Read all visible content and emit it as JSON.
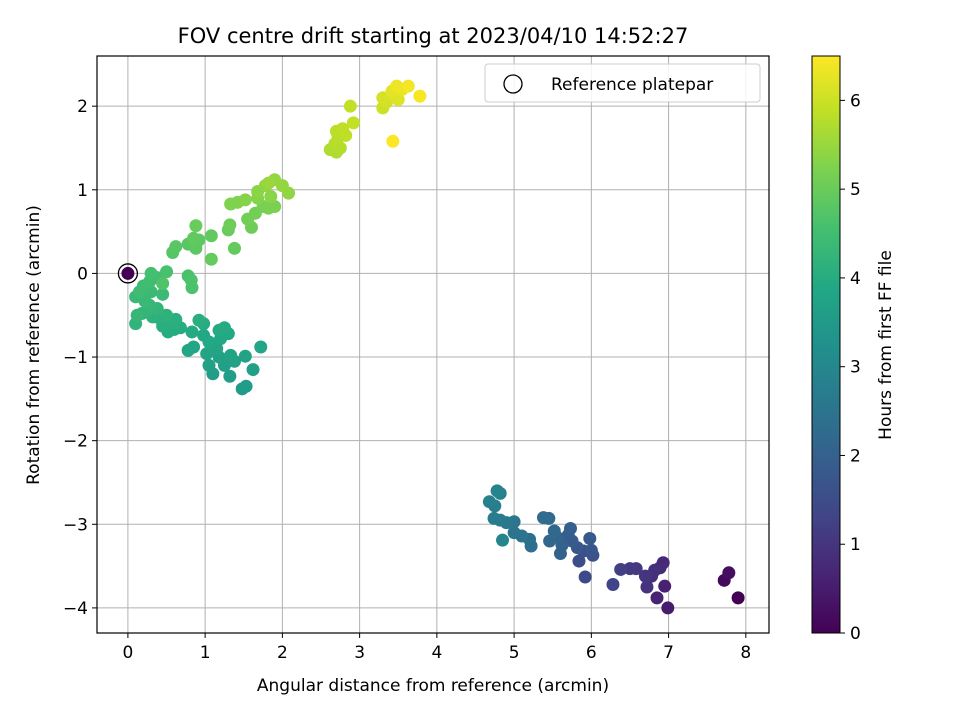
{
  "chart_data": {
    "type": "scatter",
    "title": "FOV centre drift starting at 2023/04/10 14:52:27",
    "xlabel": "Angular distance from reference (arcmin)",
    "ylabel": "Rotation from reference (arcmin)",
    "xlim": [
      -0.4,
      8.3
    ],
    "ylim": [
      -4.3,
      2.6
    ],
    "x_ticks": [
      0,
      1,
      2,
      3,
      4,
      5,
      6,
      7,
      8
    ],
    "y_ticks": [
      -4,
      -3,
      -2,
      -1,
      0,
      1,
      2
    ],
    "grid": true,
    "legend": {
      "position": "top-right",
      "entries": [
        "Reference platepar"
      ]
    },
    "colorbar": {
      "label": "Hours from first FF file",
      "range": [
        0,
        6.5
      ],
      "ticks": [
        0,
        1,
        2,
        3,
        4,
        5,
        6
      ],
      "colormap": "viridis"
    },
    "reference_point": {
      "x": 0,
      "y": 0,
      "name": "Reference platepar"
    },
    "series": [
      {
        "points": [
          {
            "x": 7.9,
            "y": -3.88,
            "t": 0.0
          },
          {
            "x": 7.72,
            "y": -3.67,
            "t": 0.15
          },
          {
            "x": 7.78,
            "y": -3.58,
            "t": 0.25
          },
          {
            "x": 6.99,
            "y": -4.0,
            "t": 0.5
          },
          {
            "x": 6.95,
            "y": -3.74,
            "t": 0.6
          },
          {
            "x": 6.85,
            "y": -3.88,
            "t": 0.65
          },
          {
            "x": 6.93,
            "y": -3.46,
            "t": 0.75
          },
          {
            "x": 6.89,
            "y": -3.52,
            "t": 0.8
          },
          {
            "x": 6.78,
            "y": -3.62,
            "t": 0.85
          },
          {
            "x": 6.82,
            "y": -3.55,
            "t": 0.9
          },
          {
            "x": 6.72,
            "y": -3.75,
            "t": 0.95
          },
          {
            "x": 6.7,
            "y": -3.62,
            "t": 1.0
          },
          {
            "x": 6.58,
            "y": -3.53,
            "t": 1.05
          },
          {
            "x": 6.5,
            "y": -3.53,
            "t": 1.1
          },
          {
            "x": 6.38,
            "y": -3.54,
            "t": 1.2
          },
          {
            "x": 6.28,
            "y": -3.72,
            "t": 1.3
          },
          {
            "x": 5.92,
            "y": -3.63,
            "t": 1.45
          },
          {
            "x": 5.84,
            "y": -3.44,
            "t": 1.55
          },
          {
            "x": 5.9,
            "y": -3.32,
            "t": 1.6
          },
          {
            "x": 6.02,
            "y": -3.37,
            "t": 1.65
          },
          {
            "x": 6.0,
            "y": -3.31,
            "t": 1.7
          },
          {
            "x": 5.82,
            "y": -3.28,
            "t": 1.75
          },
          {
            "x": 5.98,
            "y": -3.17,
            "t": 1.8
          },
          {
            "x": 5.75,
            "y": -3.2,
            "t": 1.85
          },
          {
            "x": 5.7,
            "y": -3.13,
            "t": 1.9
          },
          {
            "x": 5.73,
            "y": -3.05,
            "t": 1.95
          },
          {
            "x": 5.62,
            "y": -3.25,
            "t": 2.0
          },
          {
            "x": 5.6,
            "y": -3.35,
            "t": 2.05
          },
          {
            "x": 5.55,
            "y": -3.15,
            "t": 2.1
          },
          {
            "x": 5.46,
            "y": -3.2,
            "t": 2.15
          },
          {
            "x": 5.52,
            "y": -3.08,
            "t": 2.2
          },
          {
            "x": 5.45,
            "y": -2.93,
            "t": 2.25
          },
          {
            "x": 5.38,
            "y": -2.92,
            "t": 2.3
          },
          {
            "x": 5.22,
            "y": -3.26,
            "t": 2.35
          },
          {
            "x": 5.2,
            "y": -3.18,
            "t": 2.4
          },
          {
            "x": 5.1,
            "y": -3.14,
            "t": 2.45
          },
          {
            "x": 5.0,
            "y": -3.1,
            "t": 2.5
          },
          {
            "x": 5.0,
            "y": -2.97,
            "t": 2.55
          },
          {
            "x": 4.9,
            "y": -2.98,
            "t": 2.6
          },
          {
            "x": 4.82,
            "y": -2.95,
            "t": 2.65
          },
          {
            "x": 4.74,
            "y": -2.93,
            "t": 2.7
          },
          {
            "x": 4.75,
            "y": -2.78,
            "t": 2.75
          },
          {
            "x": 4.68,
            "y": -2.73,
            "t": 2.8
          },
          {
            "x": 4.82,
            "y": -2.63,
            "t": 2.85
          },
          {
            "x": 4.78,
            "y": -2.6,
            "t": 2.9
          },
          {
            "x": 4.85,
            "y": -3.19,
            "t": 2.95
          },
          {
            "x": 1.48,
            "y": -1.38,
            "t": 3.5
          },
          {
            "x": 1.53,
            "y": -1.35,
            "t": 3.55
          },
          {
            "x": 1.32,
            "y": -1.23,
            "t": 3.6
          },
          {
            "x": 1.1,
            "y": -1.2,
            "t": 3.6
          },
          {
            "x": 1.62,
            "y": -1.15,
            "t": 3.65
          },
          {
            "x": 1.25,
            "y": -1.1,
            "t": 3.65
          },
          {
            "x": 1.05,
            "y": -1.1,
            "t": 3.7
          },
          {
            "x": 1.38,
            "y": -1.05,
            "t": 3.7
          },
          {
            "x": 1.18,
            "y": -1.0,
            "t": 3.7
          },
          {
            "x": 1.33,
            "y": -0.98,
            "t": 3.75
          },
          {
            "x": 1.52,
            "y": -0.99,
            "t": 3.75
          },
          {
            "x": 1.02,
            "y": -0.96,
            "t": 3.8
          },
          {
            "x": 1.15,
            "y": -0.9,
            "t": 3.8
          },
          {
            "x": 1.1,
            "y": -0.86,
            "t": 3.8
          },
          {
            "x": 1.72,
            "y": -0.88,
            "t": 3.85
          },
          {
            "x": 0.78,
            "y": -0.92,
            "t": 3.85
          },
          {
            "x": 0.85,
            "y": -0.88,
            "t": 3.85
          },
          {
            "x": 1.05,
            "y": -0.82,
            "t": 3.9
          },
          {
            "x": 1.2,
            "y": -0.78,
            "t": 3.9
          },
          {
            "x": 0.98,
            "y": -0.74,
            "t": 3.9
          },
          {
            "x": 1.3,
            "y": -0.72,
            "t": 3.9
          },
          {
            "x": 0.83,
            "y": -0.7,
            "t": 3.95
          },
          {
            "x": 1.18,
            "y": -0.68,
            "t": 3.95
          },
          {
            "x": 1.25,
            "y": -0.65,
            "t": 3.95
          },
          {
            "x": 0.6,
            "y": -0.67,
            "t": 3.95
          },
          {
            "x": 0.68,
            "y": -0.65,
            "t": 4.0
          },
          {
            "x": 0.52,
            "y": -0.7,
            "t": 4.0
          },
          {
            "x": 0.98,
            "y": -0.6,
            "t": 4.0
          },
          {
            "x": 0.92,
            "y": -0.56,
            "t": 4.05
          },
          {
            "x": 0.6,
            "y": -0.6,
            "t": 4.05
          },
          {
            "x": 0.45,
            "y": -0.63,
            "t": 4.05
          },
          {
            "x": 0.62,
            "y": -0.55,
            "t": 4.1
          },
          {
            "x": 0.55,
            "y": -0.55,
            "t": 4.1
          },
          {
            "x": 0.4,
            "y": -0.53,
            "t": 4.1
          },
          {
            "x": 0.5,
            "y": -0.5,
            "t": 4.15
          },
          {
            "x": 0.32,
            "y": -0.52,
            "t": 4.15
          },
          {
            "x": 0.1,
            "y": -0.6,
            "t": 4.2
          },
          {
            "x": 0.18,
            "y": -0.48,
            "t": 4.2
          },
          {
            "x": 0.25,
            "y": -0.45,
            "t": 4.25
          },
          {
            "x": 0.38,
            "y": -0.42,
            "t": 4.25
          },
          {
            "x": 0.12,
            "y": -0.5,
            "t": 4.3
          },
          {
            "x": 0.28,
            "y": -0.38,
            "t": 4.3
          },
          {
            "x": 0.22,
            "y": -0.33,
            "t": 4.35
          },
          {
            "x": 0.1,
            "y": -0.28,
            "t": 4.35
          },
          {
            "x": 0.45,
            "y": -0.25,
            "t": 4.4
          },
          {
            "x": 0.3,
            "y": -0.22,
            "t": 4.4
          },
          {
            "x": 0.15,
            "y": -0.22,
            "t": 4.45
          },
          {
            "x": 0.2,
            "y": -0.15,
            "t": 4.45
          },
          {
            "x": 0.28,
            "y": -0.1,
            "t": 4.5
          },
          {
            "x": 0.38,
            "y": -0.05,
            "t": 4.5
          },
          {
            "x": 0.3,
            "y": 0.0,
            "t": 4.55
          },
          {
            "x": 0.5,
            "y": 0.02,
            "t": 4.6
          },
          {
            "x": 0.78,
            "y": -0.03,
            "t": 4.6
          },
          {
            "x": 0.82,
            "y": -0.08,
            "t": 4.65
          },
          {
            "x": 0.83,
            "y": -0.17,
            "t": 4.65
          },
          {
            "x": 0.45,
            "y": -0.12,
            "t": 4.7
          },
          {
            "x": 0.58,
            "y": 0.25,
            "t": 4.75
          },
          {
            "x": 0.62,
            "y": 0.32,
            "t": 4.8
          },
          {
            "x": 0.78,
            "y": 0.35,
            "t": 4.8
          },
          {
            "x": 0.88,
            "y": 0.3,
            "t": 4.85
          },
          {
            "x": 0.92,
            "y": 0.4,
            "t": 4.85
          },
          {
            "x": 0.85,
            "y": 0.42,
            "t": 4.9
          },
          {
            "x": 1.08,
            "y": 0.45,
            "t": 4.9
          },
          {
            "x": 1.08,
            "y": 0.17,
            "t": 4.95
          },
          {
            "x": 1.38,
            "y": 0.3,
            "t": 4.95
          },
          {
            "x": 0.88,
            "y": 0.57,
            "t": 5.0
          },
          {
            "x": 1.3,
            "y": 0.52,
            "t": 5.0
          },
          {
            "x": 1.32,
            "y": 0.58,
            "t": 5.05
          },
          {
            "x": 1.6,
            "y": 0.55,
            "t": 5.05
          },
          {
            "x": 1.55,
            "y": 0.65,
            "t": 5.1
          },
          {
            "x": 1.65,
            "y": 0.72,
            "t": 5.1
          },
          {
            "x": 1.75,
            "y": 0.8,
            "t": 5.15
          },
          {
            "x": 1.82,
            "y": 0.78,
            "t": 5.2
          },
          {
            "x": 1.9,
            "y": 0.8,
            "t": 5.2
          },
          {
            "x": 1.33,
            "y": 0.83,
            "t": 5.25
          },
          {
            "x": 1.42,
            "y": 0.85,
            "t": 5.25
          },
          {
            "x": 1.52,
            "y": 0.88,
            "t": 5.3
          },
          {
            "x": 1.68,
            "y": 0.9,
            "t": 5.3
          },
          {
            "x": 1.85,
            "y": 0.92,
            "t": 5.35
          },
          {
            "x": 1.68,
            "y": 0.98,
            "t": 5.35
          },
          {
            "x": 2.08,
            "y": 0.96,
            "t": 5.4
          },
          {
            "x": 1.78,
            "y": 1.05,
            "t": 5.4
          },
          {
            "x": 2.0,
            "y": 1.05,
            "t": 5.45
          },
          {
            "x": 1.9,
            "y": 1.12,
            "t": 5.45
          },
          {
            "x": 1.82,
            "y": 1.08,
            "t": 5.5
          },
          {
            "x": 2.62,
            "y": 1.48,
            "t": 5.7
          },
          {
            "x": 2.7,
            "y": 1.45,
            "t": 5.72
          },
          {
            "x": 2.75,
            "y": 1.5,
            "t": 5.75
          },
          {
            "x": 2.68,
            "y": 1.55,
            "t": 5.78
          },
          {
            "x": 2.72,
            "y": 1.62,
            "t": 5.8
          },
          {
            "x": 2.7,
            "y": 1.7,
            "t": 5.82
          },
          {
            "x": 2.82,
            "y": 1.65,
            "t": 5.85
          },
          {
            "x": 2.78,
            "y": 1.73,
            "t": 5.87
          },
          {
            "x": 2.92,
            "y": 1.8,
            "t": 5.9
          },
          {
            "x": 2.88,
            "y": 2.0,
            "t": 5.92
          },
          {
            "x": 3.3,
            "y": 1.98,
            "t": 6.0
          },
          {
            "x": 3.35,
            "y": 2.05,
            "t": 6.05
          },
          {
            "x": 3.3,
            "y": 2.1,
            "t": 6.1
          },
          {
            "x": 3.45,
            "y": 2.12,
            "t": 6.15
          },
          {
            "x": 3.5,
            "y": 2.08,
            "t": 6.2
          },
          {
            "x": 3.42,
            "y": 2.18,
            "t": 6.25
          },
          {
            "x": 3.55,
            "y": 2.2,
            "t": 6.3
          },
          {
            "x": 3.48,
            "y": 2.24,
            "t": 6.35
          },
          {
            "x": 3.63,
            "y": 2.24,
            "t": 6.4
          },
          {
            "x": 3.78,
            "y": 2.12,
            "t": 6.45
          },
          {
            "x": 3.43,
            "y": 1.58,
            "t": 6.48
          }
        ]
      }
    ]
  }
}
